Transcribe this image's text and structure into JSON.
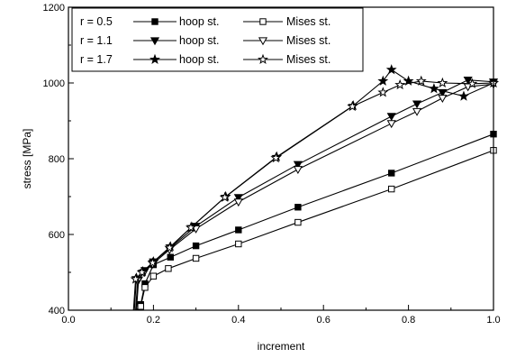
{
  "chart_data": {
    "type": "line",
    "xlabel": "increment",
    "ylabel": "stress [MPa]",
    "xlim": [
      0.0,
      1.0
    ],
    "ylim": [
      400,
      1200
    ],
    "xticks": [
      "0.0",
      "0.2",
      "0.4",
      "0.6",
      "0.8",
      "1.0"
    ],
    "yticks": [
      "400",
      "600",
      "800",
      "1000",
      "1200"
    ],
    "legend_position": "top-left",
    "legend": [
      {
        "radius_label": "r = 0.5",
        "hoop_label": "hoop st.",
        "mises_label": "Mises st."
      },
      {
        "radius_label": "r = 1.1",
        "hoop_label": "hoop st.",
        "mises_label": "Mises st."
      },
      {
        "radius_label": "r = 1.7",
        "hoop_label": "hoop st.",
        "mises_label": "Mises st."
      }
    ],
    "series": [
      {
        "id": "r05-hoop",
        "marker": "square-filled",
        "x": [
          0.16,
          0.17,
          0.18,
          0.2,
          0.24,
          0.3,
          0.4,
          0.54,
          0.76,
          1.0
        ],
        "y": [
          400,
          415,
          470,
          520,
          540,
          570,
          612,
          672,
          762,
          865
        ]
      },
      {
        "id": "r05-mises",
        "marker": "square-open",
        "x": [
          0.163,
          0.17,
          0.18,
          0.2,
          0.235,
          0.3,
          0.4,
          0.54,
          0.76,
          1.0
        ],
        "y": [
          400,
          410,
          460,
          490,
          510,
          537,
          575,
          632,
          720,
          822
        ]
      },
      {
        "id": "r11-hoop",
        "marker": "triangle-down-filled",
        "x": [
          0.16,
          0.165,
          0.18,
          0.2,
          0.24,
          0.3,
          0.4,
          0.54,
          0.76,
          0.82,
          0.88,
          0.94,
          1.0
        ],
        "y": [
          400,
          480,
          505,
          528,
          565,
          622,
          698,
          785,
          912,
          945,
          975,
          1008,
          1003
        ]
      },
      {
        "id": "r11-mises",
        "marker": "triangle-down-open",
        "x": [
          0.158,
          0.163,
          0.178,
          0.198,
          0.238,
          0.3,
          0.4,
          0.54,
          0.76,
          0.82,
          0.88,
          0.94,
          1.0
        ],
        "y": [
          400,
          478,
          500,
          522,
          560,
          615,
          686,
          772,
          893,
          925,
          960,
          990,
          997
        ]
      },
      {
        "id": "r17-hoop",
        "marker": "star-filled",
        "x": [
          0.155,
          0.16,
          0.175,
          0.2,
          0.24,
          0.29,
          0.37,
          0.49,
          0.67,
          0.74,
          0.76,
          0.8,
          0.86,
          0.93,
          1.0
        ],
        "y": [
          400,
          485,
          502,
          528,
          568,
          620,
          700,
          805,
          940,
          1005,
          1035,
          1005,
          985,
          965,
          1000
        ]
      },
      {
        "id": "r17-mises",
        "marker": "star-open",
        "x": [
          0.153,
          0.158,
          0.173,
          0.198,
          0.238,
          0.288,
          0.368,
          0.488,
          0.668,
          0.74,
          0.78,
          0.83,
          0.88,
          0.95,
          1.0
        ],
        "y": [
          400,
          482,
          500,
          525,
          565,
          618,
          698,
          802,
          938,
          975,
          995,
          1005,
          1000,
          998,
          1000
        ]
      }
    ]
  }
}
